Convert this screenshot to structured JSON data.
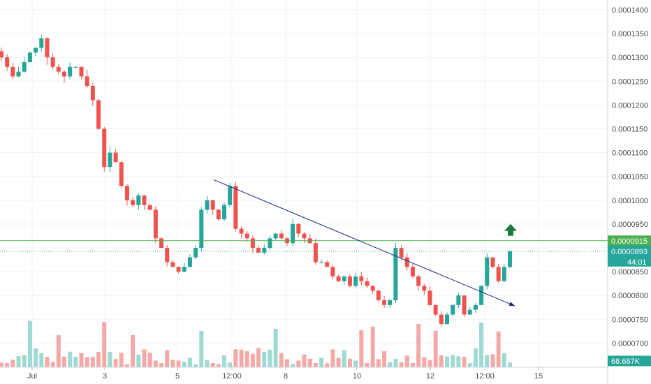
{
  "chart_data": {
    "type": "candlestick",
    "title": "",
    "xlabel": "",
    "ylabel": "",
    "ylim": [
      6.75e-05,
      0.000143
    ],
    "y_ticks": [
      "0.0001400",
      "0.0001350",
      "0.0001300",
      "0.0001250",
      "0.0001200",
      "0.0001150",
      "0.0001100",
      "0.0001050",
      "0.0001000",
      "0.0000950",
      "0.0000900",
      "0.0000850",
      "0.0000800",
      "0.0000750",
      "0.0000700"
    ],
    "x_ticks": [
      "Jul",
      "3",
      "5",
      "12:00",
      "8",
      "10",
      "12",
      "12:00",
      "15"
    ],
    "grid": true,
    "series": [
      {
        "values": [
          0.00013,
          0.000128,
          0.000126,
          0.000127,
          0.000129,
          0.000131,
          0.000132,
          0.000134,
          0.00013,
          0.000128,
          0.000127,
          0.000126,
          0.000128,
          0.000128,
          0.000126,
          0.000124,
          0.000121,
          0.000115,
          0.000107,
          0.00011,
          0.000108,
          0.000103,
          0.0001,
          9.9e-05,
          0.000101,
          9.9e-05,
          9.8e-05,
          9.2e-05,
          9e-05,
          8.7e-05,
          8.6e-05,
          8.5e-05,
          8.6e-05,
          8.8e-05,
          9e-05,
          9.8e-05,
          0.0001,
          9.8e-05,
          9.6e-05,
          9.9e-05,
          0.000103,
          9.4e-05,
          9.3e-05,
          9.2e-05,
          9e-05,
          8.9e-05,
          9e-05,
          9.2e-05,
          9.3e-05,
          9.2e-05,
          9.1e-05,
          9.5e-05,
          9.3e-05,
          9.2e-05,
          9.1e-05,
          8.7e-05,
          8.7e-05,
          8.6e-05,
          8.4e-05,
          8.3e-05,
          8.4e-05,
          8.2e-05,
          8.4e-05,
          8.3e-05,
          8.2e-05,
          8.1e-05,
          7.9e-05,
          7.8e-05,
          7.9e-05,
          9e-05,
          8.8e-05,
          8.6e-05,
          8.4e-05,
          8.2e-05,
          8.1e-05,
          7.8e-05,
          7.6e-05,
          7.4e-05,
          7.6e-05,
          7.8e-05,
          8e-05,
          7.6e-05,
          7.7e-05,
          7.8e-05,
          8.2e-05,
          8.8e-05,
          8.6e-05,
          8.3e-05,
          8.6e-05,
          8.93e-05
        ]
      }
    ],
    "volume_label": "68.687K",
    "trendline": {
      "x_from": "2021-07-06 00:00",
      "y_from": 0.0001043,
      "x_to": "2021-07-14 07:00",
      "y_to": 7.78e-05
    },
    "horizontal_line": {
      "value": 9.15e-05,
      "label": "0.0000915"
    },
    "last_price": {
      "value": 8.93e-05,
      "label": "0.0000893",
      "countdown": "44:01"
    },
    "arrow": "up",
    "colors": {
      "up": "#26a69a",
      "down": "#ef5350",
      "up_volume": "#9fd9d4",
      "down_volume": "#f4a9a7",
      "trend": "#1a237e",
      "hline": "#4caf50",
      "last": "#26a69a",
      "vol_tag": "#26a69a",
      "grid": "#eef2f6"
    }
  }
}
